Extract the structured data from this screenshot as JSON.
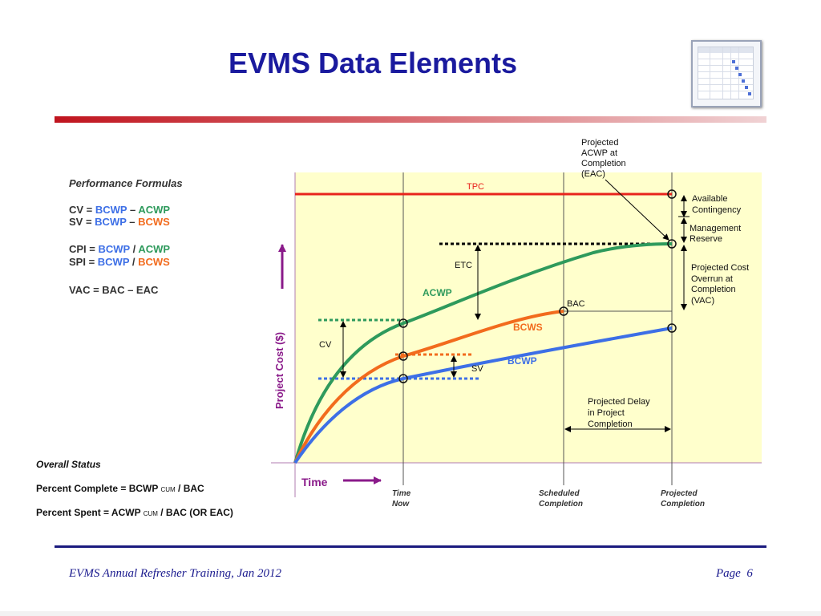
{
  "slide": {
    "title": "EVMS Data Elements",
    "footer_left": "EVMS Annual Refresher Training, Jan 2012",
    "footer_page_label": "Page",
    "footer_page_number": "6"
  },
  "colors": {
    "title": "#1a1a9e",
    "accent_bar": "#c0141e",
    "tpc": "#e8231c",
    "acwp": "#2e9a5c",
    "bcws": "#f26b1d",
    "bcwp": "#3d6fe6",
    "chart_bg": "#ffffcc",
    "axis_label": "#8a1a8a"
  },
  "formulas": {
    "heading": "Performance Formulas",
    "cv": {
      "lhs": "CV = ",
      "a": "BCWP",
      "op": " – ",
      "b": "ACWP"
    },
    "sv": {
      "lhs": "SV = ",
      "a": "BCWP",
      "op": " – ",
      "b": "BCWS"
    },
    "cpi": {
      "lhs": "CPI = ",
      "a": "BCWP",
      "op": " / ",
      "b": "ACWP"
    },
    "spi": {
      "lhs": "SPI = ",
      "a": "BCWP",
      "op": " / ",
      "b": "BCWS"
    },
    "vac": "VAC = BAC – EAC"
  },
  "status": {
    "heading": "Overall Status",
    "complete": {
      "pre": "Percent Complete = BCWP ",
      "sub": "CUM",
      "post": " / BAC"
    },
    "spent": {
      "pre": "Percent Spent = ACWP ",
      "sub": "CUM",
      "post": " / BAC (OR EAC)"
    }
  },
  "diagram": {
    "y_axis_label": "Project Cost ($)",
    "x_axis_label": "Time",
    "curve_labels": {
      "tpc": "TPC",
      "acwp": "ACWP",
      "bcws": "BCWS",
      "bcwp": "BCWP",
      "bac": "BAC"
    },
    "measure_labels": {
      "cv": "CV",
      "sv": "SV",
      "etc": "ETC"
    },
    "projected_eac": [
      "Projected",
      "ACWP at",
      "Completion",
      "(EAC)"
    ],
    "right_labels": {
      "contingency": [
        "Available",
        "Contingency"
      ],
      "reserve": [
        "Management",
        "Reserve"
      ],
      "overrun": [
        "Projected Cost",
        "Overrun at",
        "Completion",
        "(VAC)"
      ]
    },
    "delay": [
      "Projected Delay",
      "in Project",
      "Completion"
    ],
    "time_markers": [
      [
        "Time",
        "Now"
      ],
      [
        "Scheduled",
        "Completion"
      ],
      [
        "Projected",
        "Completion"
      ]
    ]
  }
}
